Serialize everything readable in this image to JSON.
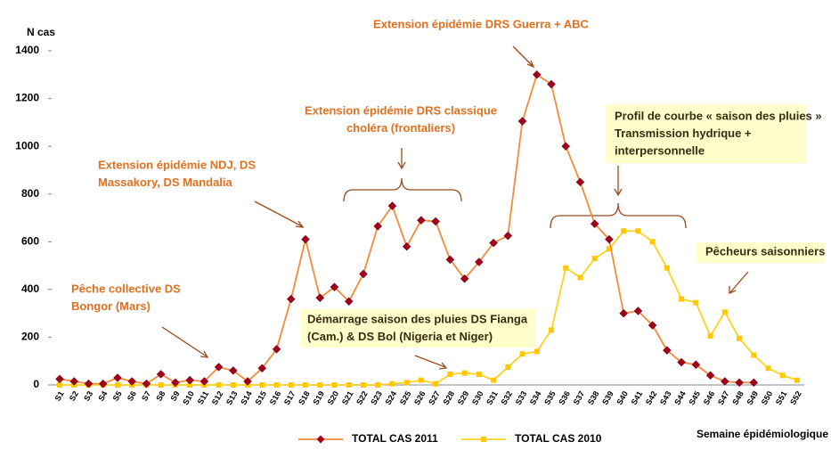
{
  "chart_data": {
    "type": "line",
    "y_label": "N cas",
    "x_label": "Semaine épidémiologique",
    "categories": [
      "S1",
      "S2",
      "S3",
      "S4",
      "S5",
      "S6",
      "S7",
      "S8",
      "S9",
      "S10",
      "S11",
      "S12",
      "S13",
      "S14",
      "S15",
      "S16",
      "S17",
      "S18",
      "S19",
      "S20",
      "S21",
      "S22",
      "S23",
      "S24",
      "S25",
      "S26",
      "S27",
      "S28",
      "S29",
      "S30",
      "S31",
      "S32",
      "S33",
      "S34",
      "S35",
      "S36",
      "S37",
      "S38",
      "S39",
      "S40",
      "S41",
      "S42",
      "S43",
      "S44",
      "S45",
      "S46",
      "S47",
      "S48",
      "S49",
      "S50",
      "S51",
      "S52"
    ],
    "series": [
      {
        "name": "TOTAL CAS 2011",
        "color": "#f28c3c",
        "marker_color": "#a3001e",
        "marker": "diamond",
        "values": [
          25,
          15,
          5,
          5,
          30,
          15,
          5,
          45,
          10,
          20,
          15,
          75,
          60,
          15,
          70,
          150,
          360,
          610,
          365,
          410,
          350,
          465,
          665,
          750,
          580,
          690,
          685,
          525,
          445,
          515,
          595,
          625,
          1105,
          1300,
          1260,
          1000,
          850,
          675,
          610,
          300,
          310,
          250,
          145,
          95,
          85,
          40,
          15,
          10,
          10,
          null,
          null,
          null
        ]
      },
      {
        "name": "TOTAL CAS 2010",
        "color": "#ffd21f",
        "marker_color": "#ffc800",
        "marker": "square",
        "values": [
          0,
          0,
          0,
          0,
          0,
          0,
          0,
          0,
          0,
          0,
          0,
          0,
          0,
          0,
          0,
          0,
          0,
          0,
          0,
          0,
          0,
          0,
          0,
          5,
          10,
          20,
          5,
          45,
          50,
          45,
          20,
          75,
          130,
          140,
          230,
          490,
          450,
          530,
          570,
          645,
          645,
          600,
          490,
          360,
          345,
          205,
          305,
          195,
          125,
          70,
          40,
          20
        ]
      }
    ],
    "ylim": [
      0,
      1400
    ],
    "yticks": [
      0,
      200,
      400,
      600,
      800,
      1000,
      1200,
      1400
    ],
    "annotations": [
      {
        "lines": [
          "Extension épidémie DRS Guerra + ABC"
        ],
        "color": "#e2701f"
      },
      {
        "lines": [
          "Extension épidémie DRS classique",
          "choléra (frontaliers)"
        ],
        "color": "#e2701f"
      },
      {
        "lines": [
          "Extension épidémie NDJ, DS",
          "Massakory, DS Mandalia"
        ],
        "color": "#e2701f"
      },
      {
        "lines": [
          "Pêche collective DS",
          "Bongor (Mars)"
        ],
        "color": "#e2701f"
      },
      {
        "lines": [
          "Profil de courbe « saison des pluies »",
          "Transmission hydrique +",
          "interpersonnelle"
        ],
        "color": "#3a2a10"
      },
      {
        "lines": [
          "Démarrage saison des pluies DS Fianga",
          "(Cam.) & DS Bol (Nigeria et Niger)"
        ],
        "color": "#3a2a10"
      },
      {
        "lines": [
          "Pêcheurs saisonniers"
        ],
        "color": "#3a2a10"
      }
    ]
  }
}
